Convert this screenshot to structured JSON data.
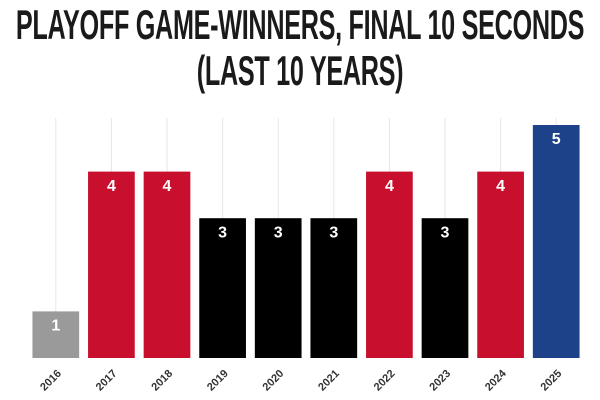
{
  "chart_data": {
    "type": "bar",
    "title": "PLAYOFF GAME-WINNERS, FINAL 10 SECONDS (LAST 10 YEARS)",
    "categories": [
      "2016",
      "2017",
      "2018",
      "2019",
      "2020",
      "2021",
      "2022",
      "2023",
      "2024",
      "2025"
    ],
    "values": [
      1,
      4,
      4,
      3,
      3,
      3,
      4,
      3,
      4,
      5
    ],
    "colors": [
      "#9a9a9a",
      "#c8102e",
      "#c8102e",
      "#000000",
      "#000000",
      "#000000",
      "#c8102e",
      "#000000",
      "#c8102e",
      "#1d428a"
    ],
    "grid": true
  }
}
